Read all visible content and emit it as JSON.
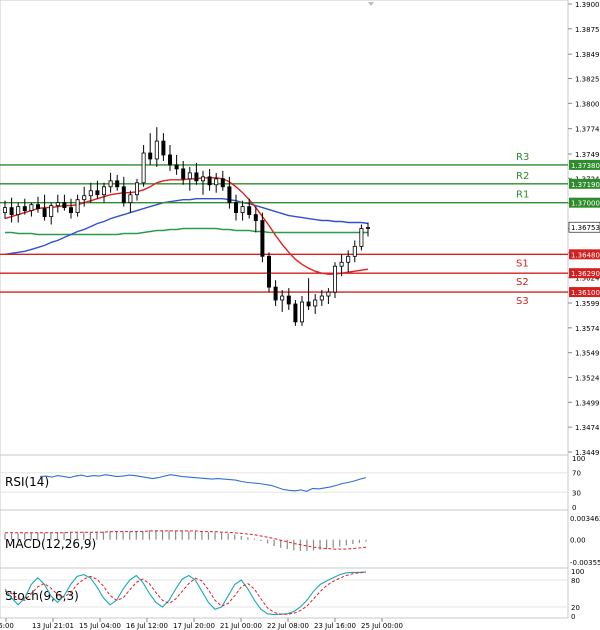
{
  "chart_data": {
    "type": "candlestick",
    "symbol_hint": "GBPUSD-like FX, H-timeframe",
    "price_axis": {
      "min": 1.3449,
      "max": 1.39,
      "ticks": [
        "1.39000",
        "1.38750",
        "1.38495",
        "1.38250",
        "1.38000",
        "1.37745",
        "1.37490",
        "1.37245",
        "1.36995",
        "1.36740",
        "1.36495",
        "1.36245",
        "1.35990",
        "1.35740",
        "1.35490",
        "1.35240",
        "1.34990",
        "1.34740",
        "1.34490"
      ]
    },
    "time_axis": {
      "labels": [
        "6:00",
        "13 Jul 21:01",
        "15 Jul 04:00",
        "16 Jul 12:00",
        "17 Jul 20:00",
        "21 Jul 00:00",
        "22 Jul 08:00",
        "23 Jul 16:00",
        "25 Jul 00:00"
      ]
    },
    "current_price": {
      "label": "1.36753",
      "value": 1.36753
    },
    "levels": [
      {
        "name": "R3",
        "label": "1.37380",
        "value": 1.3738,
        "color": "#2e8b2e"
      },
      {
        "name": "R2",
        "label": "1.37190",
        "value": 1.3719,
        "color": "#2e8b2e"
      },
      {
        "name": "R1",
        "label": "1.37000",
        "value": 1.37,
        "color": "#2e8b2e"
      },
      {
        "name": "S1",
        "label": "1.36480",
        "value": 1.3648,
        "color": "#d42020"
      },
      {
        "name": "S2",
        "label": "1.36290",
        "value": 1.3629,
        "color": "#d42020"
      },
      {
        "name": "S3",
        "label": "1.36100",
        "value": 1.361,
        "color": "#d42020"
      }
    ],
    "candles": [
      [
        1.369,
        1.3702,
        1.3684,
        1.3695
      ],
      [
        1.3695,
        1.3705,
        1.368,
        1.3688
      ],
      [
        1.3688,
        1.37,
        1.368,
        1.3696
      ],
      [
        1.3696,
        1.3704,
        1.3688,
        1.3692
      ],
      [
        1.3692,
        1.37,
        1.3686,
        1.3698
      ],
      [
        1.3698,
        1.3706,
        1.369,
        1.3694
      ],
      [
        1.3694,
        1.3708,
        1.3682,
        1.3686
      ],
      [
        1.3686,
        1.37,
        1.3678,
        1.3697
      ],
      [
        1.3697,
        1.3708,
        1.369,
        1.37
      ],
      [
        1.37,
        1.3708,
        1.3692,
        1.3695
      ],
      [
        1.3695,
        1.3704,
        1.3684,
        1.369
      ],
      [
        1.369,
        1.3708,
        1.3686,
        1.3703
      ],
      [
        1.3703,
        1.3716,
        1.3696,
        1.3707
      ],
      [
        1.3707,
        1.372,
        1.37,
        1.3712
      ],
      [
        1.3712,
        1.3722,
        1.3704,
        1.3708
      ],
      [
        1.3708,
        1.372,
        1.37,
        1.3716
      ],
      [
        1.3716,
        1.373,
        1.371,
        1.3722
      ],
      [
        1.3722,
        1.3728,
        1.3712,
        1.3716
      ],
      [
        1.3716,
        1.3726,
        1.3696,
        1.37
      ],
      [
        1.37,
        1.3712,
        1.369,
        1.3708
      ],
      [
        1.3708,
        1.3724,
        1.3702,
        1.372
      ],
      [
        1.372,
        1.3758,
        1.3716,
        1.375
      ],
      [
        1.375,
        1.377,
        1.3738,
        1.3744
      ],
      [
        1.3744,
        1.3776,
        1.3736,
        1.3762
      ],
      [
        1.3762,
        1.377,
        1.3742,
        1.3748
      ],
      [
        1.3748,
        1.3758,
        1.3732,
        1.3738
      ],
      [
        1.3738,
        1.3748,
        1.3728,
        1.3734
      ],
      [
        1.3734,
        1.3742,
        1.3718,
        1.3724
      ],
      [
        1.3724,
        1.3736,
        1.3712,
        1.373
      ],
      [
        1.373,
        1.374,
        1.3718,
        1.3722
      ],
      [
        1.3722,
        1.3732,
        1.3708,
        1.3726
      ],
      [
        1.3726,
        1.3734,
        1.3712,
        1.3718
      ],
      [
        1.3718,
        1.373,
        1.371,
        1.3724
      ],
      [
        1.3724,
        1.3732,
        1.3712,
        1.3716
      ],
      [
        1.3716,
        1.3726,
        1.3694,
        1.37
      ],
      [
        1.37,
        1.3708,
        1.3682,
        1.369
      ],
      [
        1.369,
        1.3702,
        1.3682,
        1.3696
      ],
      [
        1.3696,
        1.3704,
        1.3684,
        1.3688
      ],
      [
        1.3688,
        1.3696,
        1.367,
        1.3682
      ],
      [
        1.3682,
        1.369,
        1.364,
        1.3646
      ],
      [
        1.3646,
        1.365,
        1.361,
        1.3615
      ],
      [
        1.3615,
        1.3622,
        1.3596,
        1.3602
      ],
      [
        1.3602,
        1.3612,
        1.359,
        1.3606
      ],
      [
        1.3606,
        1.3614,
        1.3592,
        1.3598
      ],
      [
        1.3598,
        1.3602,
        1.3576,
        1.358
      ],
      [
        1.358,
        1.3606,
        1.3576,
        1.36
      ],
      [
        1.36,
        1.3624,
        1.3592,
        1.3596
      ],
      [
        1.3596,
        1.3608,
        1.3588,
        1.3602
      ],
      [
        1.3602,
        1.3612,
        1.3596,
        1.3606
      ],
      [
        1.3606,
        1.3614,
        1.3598,
        1.361
      ],
      [
        1.361,
        1.364,
        1.3604,
        1.3636
      ],
      [
        1.3636,
        1.3648,
        1.3626,
        1.364
      ],
      [
        1.364,
        1.3652,
        1.363,
        1.3646
      ],
      [
        1.3646,
        1.3662,
        1.364,
        1.3656
      ],
      [
        1.3656,
        1.3678,
        1.3652,
        1.3674
      ],
      [
        1.3674,
        1.368,
        1.3666,
        1.3675
      ]
    ],
    "series": [
      {
        "name": "MA fast (red)",
        "color": "#e02020",
        "values": [
          1.3684,
          1.3686,
          1.3688,
          1.369,
          1.3692,
          1.3694,
          1.3695,
          1.3695,
          1.3696,
          1.3697,
          1.3697,
          1.3698,
          1.37,
          1.3702,
          1.3704,
          1.3706,
          1.3708,
          1.3709,
          1.371,
          1.371,
          1.3711,
          1.3713,
          1.3716,
          1.372,
          1.3722,
          1.3723,
          1.3723,
          1.3723,
          1.3724,
          1.3724,
          1.3725,
          1.3725,
          1.3725,
          1.3724,
          1.3721,
          1.3716,
          1.371,
          1.3703,
          1.3695,
          1.3686,
          1.3677,
          1.3667,
          1.3658,
          1.365,
          1.3643,
          1.3638,
          1.3634,
          1.3631,
          1.3629,
          1.3628,
          1.3628,
          1.3629,
          1.363,
          1.3631,
          1.3632,
          1.3633
        ]
      },
      {
        "name": "MA mid (blue)",
        "color": "#3050d0",
        "values": [
          1.3648,
          1.3649,
          1.365,
          1.3651,
          1.3653,
          1.3655,
          1.3657,
          1.366,
          1.3662,
          1.3665,
          1.3668,
          1.3671,
          1.3673,
          1.3676,
          1.3679,
          1.3681,
          1.3684,
          1.3686,
          1.3688,
          1.369,
          1.3692,
          1.3694,
          1.3696,
          1.3698,
          1.37,
          1.3701,
          1.3702,
          1.3703,
          1.3703,
          1.3704,
          1.3704,
          1.3704,
          1.3704,
          1.3704,
          1.3703,
          1.3702,
          1.37,
          1.3699,
          1.3697,
          1.3695,
          1.3693,
          1.3691,
          1.3689,
          1.3687,
          1.3686,
          1.3685,
          1.3684,
          1.3683,
          1.3682,
          1.3682,
          1.3681,
          1.3681,
          1.368,
          1.368,
          1.368,
          1.3679
        ]
      },
      {
        "name": "MA slow (green)",
        "color": "#2e9a50",
        "values": [
          1.367,
          1.367,
          1.3669,
          1.3669,
          1.3669,
          1.3668,
          1.3668,
          1.3668,
          1.3668,
          1.3668,
          1.3668,
          1.3668,
          1.3668,
          1.3668,
          1.3668,
          1.3668,
          1.3668,
          1.3668,
          1.3669,
          1.3669,
          1.3669,
          1.367,
          1.3671,
          1.3672,
          1.3672,
          1.3673,
          1.3673,
          1.3674,
          1.3674,
          1.3674,
          1.3674,
          1.3674,
          1.3674,
          1.3673,
          1.3673,
          1.3672,
          1.3672,
          1.3672,
          1.3671,
          1.3671,
          1.367,
          1.367,
          1.367,
          1.367,
          1.367,
          1.367,
          1.367,
          1.367,
          1.367,
          1.367,
          1.367,
          1.367,
          1.367,
          1.367,
          1.367,
          1.367
        ]
      }
    ],
    "indicators": {
      "rsi": {
        "label": "RSI(14)",
        "levels": [
          "100",
          "70",
          "30",
          "0"
        ],
        "values": [
          62,
          63,
          61,
          64,
          62,
          60,
          63,
          65,
          62,
          64,
          63,
          66,
          64,
          62,
          63,
          65,
          64,
          62,
          60,
          58,
          60,
          63,
          66,
          64,
          62,
          61,
          60,
          59,
          58,
          57,
          58,
          57,
          56,
          55,
          52,
          50,
          49,
          48,
          46,
          44,
          40,
          36,
          34,
          33,
          35,
          32,
          38,
          37,
          39,
          41,
          44,
          48,
          50,
          53,
          57,
          60
        ]
      },
      "macd": {
        "label": "MACD(12,26,9)",
        "levels": [
          "0.003462",
          "0.00",
          "-0.003551"
        ],
        "histogram": [
          0.001,
          0.001,
          0.001,
          0.0011,
          0.0011,
          0.0011,
          0.0011,
          0.0011,
          0.0012,
          0.0012,
          0.0012,
          0.0012,
          0.0012,
          0.0012,
          0.0013,
          0.0013,
          0.0013,
          0.0013,
          0.0013,
          0.0013,
          0.0014,
          0.0014,
          0.0015,
          0.0015,
          0.0015,
          0.0015,
          0.0014,
          0.0014,
          0.0014,
          0.0013,
          0.0013,
          0.0012,
          0.0012,
          0.0011,
          0.001,
          0.0008,
          0.0006,
          0.0004,
          0.0002,
          -0.0002,
          -0.0006,
          -0.001,
          -0.0013,
          -0.0015,
          -0.0017,
          -0.0018,
          -0.0018,
          -0.0017,
          -0.0016,
          -0.0015,
          -0.0013,
          -0.0011,
          -0.0009,
          -0.0007,
          -0.0005,
          -0.0003
        ],
        "signal": [
          0.0011,
          0.0011,
          0.0011,
          0.0011,
          0.0011,
          0.0011,
          0.0011,
          0.0011,
          0.0011,
          0.0011,
          0.0012,
          0.0012,
          0.0012,
          0.0012,
          0.0012,
          0.0012,
          0.0013,
          0.0013,
          0.0013,
          0.0013,
          0.0013,
          0.0013,
          0.0014,
          0.0014,
          0.0014,
          0.0014,
          0.0014,
          0.0014,
          0.0014,
          0.0014,
          0.0013,
          0.0013,
          0.0013,
          0.0012,
          0.0012,
          0.0011,
          0.001,
          0.0009,
          0.0008,
          0.0006,
          0.0004,
          0.0002,
          -0.0001,
          -0.0003,
          -0.0006,
          -0.0008,
          -0.001,
          -0.0012,
          -0.0013,
          -0.0014,
          -0.0015,
          -0.0015,
          -0.0015,
          -0.0014,
          -0.0013,
          -0.0012
        ]
      },
      "stoch": {
        "label": "Stoch(9,6,3)",
        "levels": [
          "100",
          "80",
          "20",
          "0"
        ],
        "k": [
          60,
          40,
          25,
          40,
          70,
          85,
          70,
          45,
          30,
          45,
          70,
          88,
          92,
          85,
          65,
          40,
          25,
          35,
          60,
          80,
          90,
          75,
          50,
          30,
          20,
          35,
          60,
          82,
          90,
          80,
          55,
          30,
          15,
          20,
          45,
          70,
          80,
          60,
          35,
          15,
          5,
          3,
          4,
          5,
          10,
          20,
          35,
          55,
          70,
          78,
          85,
          92,
          96,
          97,
          97,
          98
        ],
        "d": [
          55,
          50,
          38,
          35,
          50,
          65,
          72,
          62,
          48,
          42,
          52,
          70,
          82,
          88,
          82,
          66,
          46,
          35,
          40,
          58,
          75,
          82,
          72,
          52,
          35,
          28,
          38,
          55,
          72,
          84,
          78,
          58,
          35,
          22,
          28,
          45,
          65,
          72,
          60,
          38,
          18,
          8,
          4,
          4,
          6,
          12,
          22,
          38,
          54,
          68,
          77,
          84,
          90,
          94,
          96,
          97
        ]
      }
    }
  }
}
